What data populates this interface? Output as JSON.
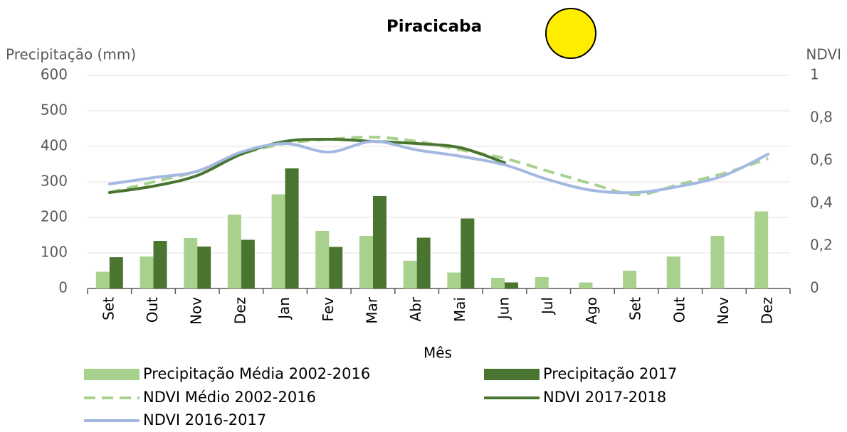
{
  "chart_data": {
    "type": "combo",
    "title": "Piracicaba",
    "y_label": "Precipitação (mm)",
    "y2_label": "NDVI",
    "x_label": "Mês",
    "categories": [
      "Set",
      "Out",
      "Nov",
      "Dez",
      "Jan",
      "Fev",
      "Mar",
      "Abr",
      "Mai",
      "Jun",
      "Jul",
      "Ago",
      "Set",
      "Out",
      "Nov",
      "Dez"
    ],
    "series": [
      {
        "name": "Precipitação Média 2002-2016",
        "type": "bar",
        "color": "#a9d18e",
        "values": [
          47,
          90,
          142,
          208,
          265,
          162,
          148,
          78,
          45,
          30,
          32,
          17,
          50,
          90,
          148,
          217
        ]
      },
      {
        "name": "Precipitação 2017",
        "type": "bar",
        "color": "#4a7530",
        "values": [
          88,
          134,
          118,
          137,
          338,
          117,
          260,
          143,
          197,
          17,
          null,
          null,
          null,
          null,
          null,
          null
        ]
      },
      {
        "name": "NDVI Médio 2002-2016",
        "type": "line",
        "axis": "y2",
        "dashed": true,
        "color": "#a9d18e",
        "values": [
          0.45,
          0.5,
          0.55,
          0.63,
          0.68,
          0.7,
          0.71,
          0.69,
          0.65,
          0.61,
          0.55,
          0.49,
          0.44,
          0.49,
          0.54,
          0.61
        ]
      },
      {
        "name": "NDVI 2017-2018",
        "type": "line",
        "axis": "y2",
        "color": "#4a7530",
        "values": [
          0.45,
          0.48,
          0.53,
          0.63,
          0.69,
          0.7,
          0.69,
          0.68,
          0.66,
          0.59,
          null,
          null,
          null,
          null,
          null,
          null
        ]
      },
      {
        "name": "NDVI 2016-2017",
        "type": "line",
        "axis": "y2",
        "color": "#a4b9e2",
        "values": [
          0.49,
          0.52,
          0.55,
          0.64,
          0.68,
          0.64,
          0.69,
          0.65,
          0.62,
          0.58,
          0.51,
          0.46,
          0.45,
          0.48,
          0.53,
          0.63
        ]
      }
    ],
    "ylim": [
      0,
      600
    ],
    "yticks": [
      0,
      100,
      200,
      300,
      400,
      500,
      600
    ],
    "y2lim": [
      0,
      1
    ],
    "y2ticks": [
      0,
      {
        "value": 0.2,
        "label": "0,2"
      },
      {
        "value": 0.4,
        "label": "0,4"
      },
      {
        "value": 0.6,
        "label": "0,6"
      },
      {
        "value": 0.8,
        "label": "0,8"
      },
      1
    ],
    "grid": true
  }
}
